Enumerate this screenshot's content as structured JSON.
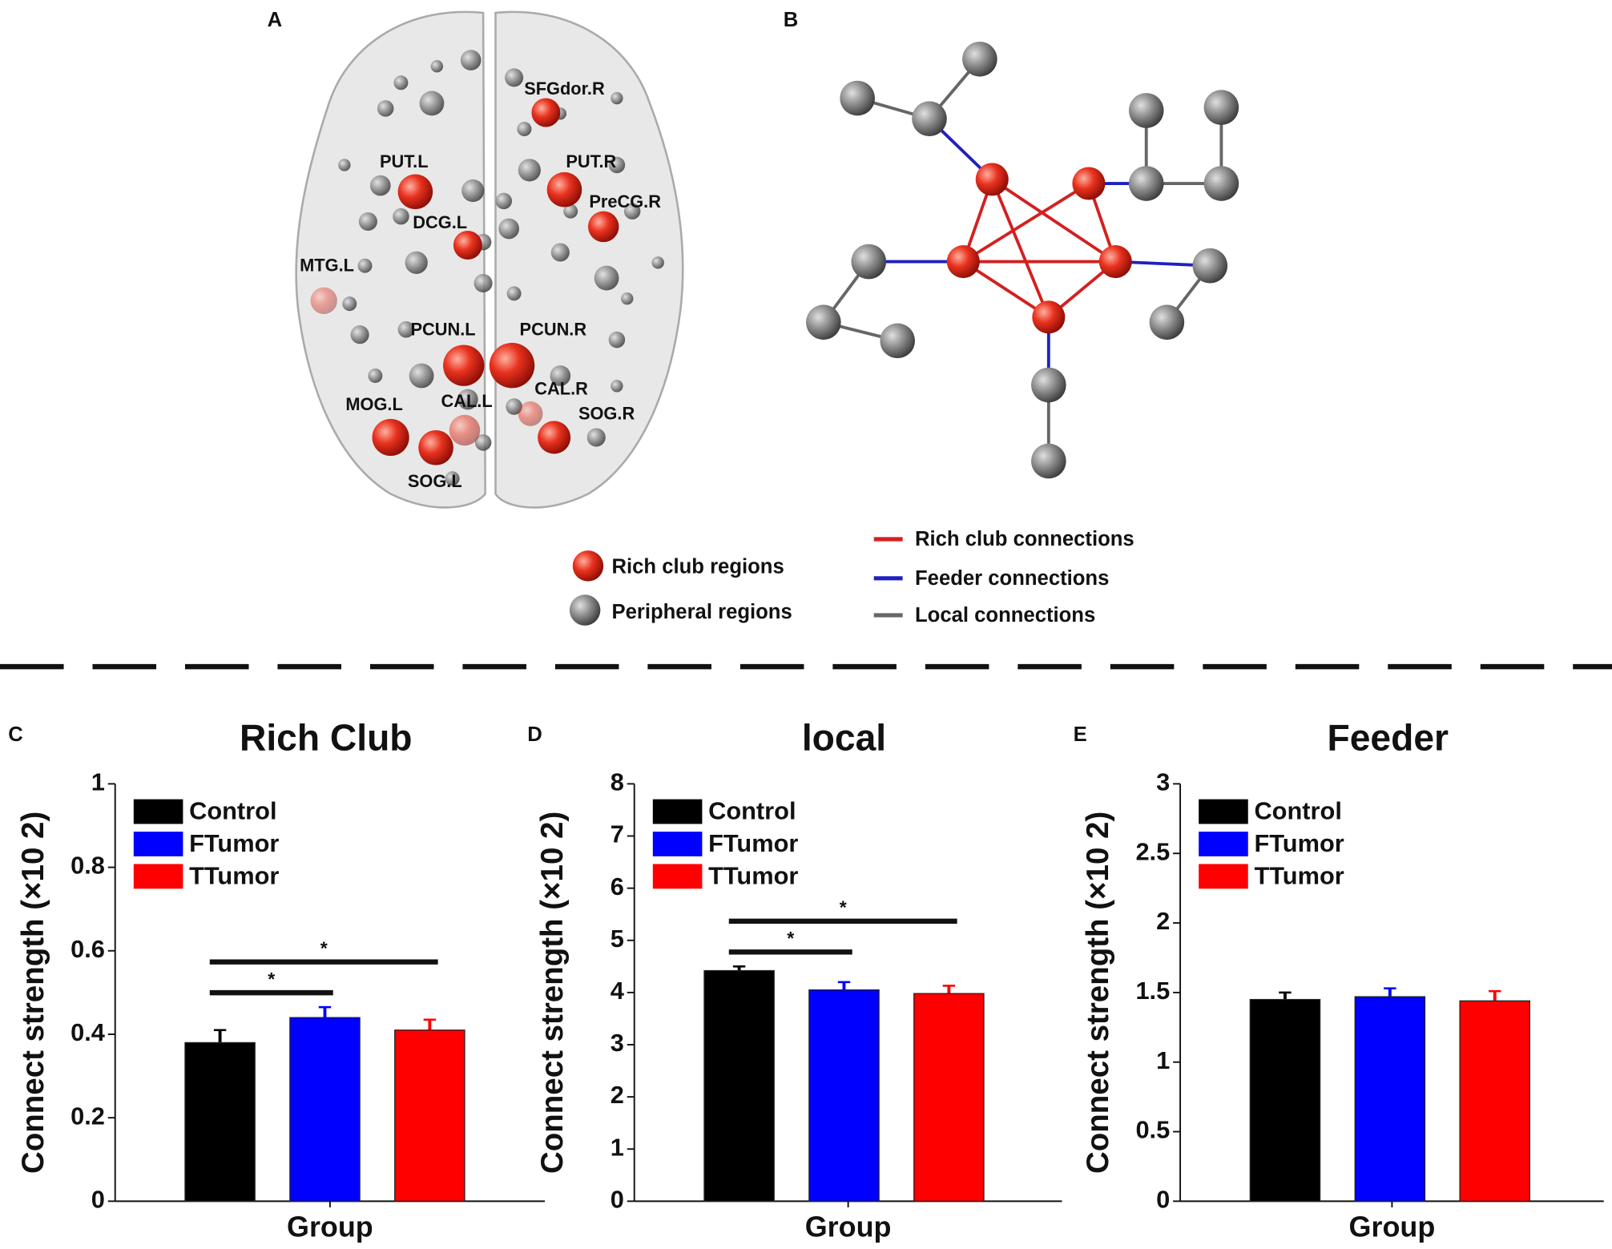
{
  "figure": {
    "panel_letters": [
      "A",
      "B"
    ],
    "brain_regions": [
      "SFGdor.R",
      "PUT.L",
      "PUT.R",
      "PreCG.R",
      "DCG.L",
      "MTG.L",
      "PCUN.L",
      "PCUN.R",
      "CAL.L",
      "CAL.R",
      "MOG.L",
      "SOG.R",
      "SOG.L"
    ],
    "node_legend": [
      "Rich club regions",
      "Peripheral regions"
    ],
    "edge_legend": [
      "Rich club connections",
      "Feeder connections",
      "Local connections"
    ]
  },
  "chart_data": [
    {
      "type": "bar",
      "panel": "C",
      "title": "Rich Club",
      "ylabel": "Connect strength (×10 2)",
      "xlabel": "Group",
      "ylim": [
        0,
        1
      ],
      "yticks": [
        0,
        0.2,
        0.4,
        0.6,
        0.8,
        1
      ],
      "series": [
        {
          "name": "Control",
          "color": "#000000",
          "values": [
            0.38
          ],
          "errors": [
            0.03
          ]
        },
        {
          "name": "FTumor",
          "color": "#0000ff",
          "values": [
            0.44
          ],
          "errors": [
            0.025
          ]
        },
        {
          "name": "TTumor",
          "color": "#ff0000",
          "values": [
            0.41
          ],
          "errors": [
            0.025
          ]
        }
      ],
      "annotations": [
        {
          "text": "*",
          "from": 0,
          "to": 1
        },
        {
          "text": "*",
          "from": 0,
          "to": 2
        }
      ]
    },
    {
      "type": "bar",
      "panel": "D",
      "title": "local",
      "ylabel": "Connect strength (×10 2)",
      "xlabel": "Group",
      "ylim": [
        0,
        8
      ],
      "yticks": [
        0,
        1,
        2,
        3,
        4,
        5,
        6,
        7,
        8
      ],
      "series": [
        {
          "name": "Control",
          "color": "#000000",
          "values": [
            4.42
          ],
          "errors": [
            0.08
          ]
        },
        {
          "name": "FTumor",
          "color": "#0000ff",
          "values": [
            4.05
          ],
          "errors": [
            0.15
          ]
        },
        {
          "name": "TTumor",
          "color": "#ff0000",
          "values": [
            3.98
          ],
          "errors": [
            0.15
          ]
        }
      ],
      "annotations": [
        {
          "text": "*",
          "from": 0,
          "to": 1
        },
        {
          "text": "*",
          "from": 0,
          "to": 2
        }
      ]
    },
    {
      "type": "bar",
      "panel": "E",
      "title": "Feeder",
      "ylabel": "Connect strength (×10 2)",
      "xlabel": "Group",
      "ylim": [
        0,
        3
      ],
      "yticks": [
        0,
        0.5,
        1,
        1.5,
        2,
        2.5,
        3
      ],
      "series": [
        {
          "name": "Control",
          "color": "#000000",
          "values": [
            1.45
          ],
          "errors": [
            0.05
          ]
        },
        {
          "name": "FTumor",
          "color": "#0000ff",
          "values": [
            1.47
          ],
          "errors": [
            0.06
          ]
        },
        {
          "name": "TTumor",
          "color": "#ff0000",
          "values": [
            1.44
          ],
          "errors": [
            0.07
          ]
        }
      ],
      "annotations": []
    }
  ]
}
